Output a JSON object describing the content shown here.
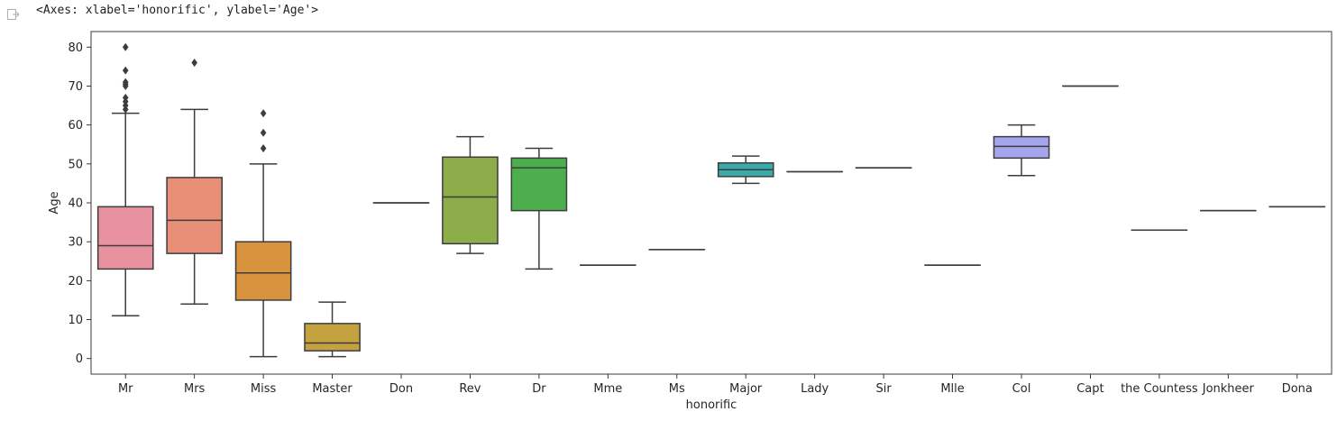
{
  "cell_output": {
    "text": "<Axes: xlabel='honorific', ylabel='Age'>",
    "icon": "output-redirect-icon"
  },
  "chart_data": {
    "type": "box",
    "xlabel": "honorific",
    "ylabel": "Age",
    "ylim": [
      -4,
      84
    ],
    "yticks": [
      0,
      10,
      20,
      30,
      40,
      50,
      60,
      70,
      80
    ],
    "grid": false,
    "categories": [
      "Mr",
      "Mrs",
      "Miss",
      "Master",
      "Don",
      "Rev",
      "Dr",
      "Mme",
      "Ms",
      "Major",
      "Lady",
      "Sir",
      "Mlle",
      "Col",
      "Capt",
      "the Countess",
      "Jonkheer",
      "Dona"
    ],
    "boxes": [
      {
        "category": "Mr",
        "color": "#e8919f",
        "whislo": 11,
        "q1": 23,
        "median": 29,
        "q3": 39,
        "whishi": 63,
        "fliers": [
          64,
          65,
          66,
          67,
          70,
          70.5,
          71,
          74,
          80
        ]
      },
      {
        "category": "Mrs",
        "color": "#e78f77",
        "whislo": 14,
        "q1": 27,
        "median": 35.5,
        "q3": 46.5,
        "whishi": 64,
        "fliers": [
          76
        ]
      },
      {
        "category": "Miss",
        "color": "#d9923e",
        "whislo": 0.5,
        "q1": 15,
        "median": 22,
        "q3": 30,
        "whishi": 50,
        "fliers": [
          54,
          58,
          63
        ]
      },
      {
        "category": "Master",
        "color": "#c4a240",
        "whislo": 0.5,
        "q1": 2,
        "median": 4,
        "q3": 9,
        "whishi": 14.5,
        "fliers": []
      },
      {
        "category": "Don",
        "color": "#b0ad3f",
        "whislo": 40,
        "q1": 40,
        "median": 40,
        "q3": 40,
        "whishi": 40,
        "fliers": []
      },
      {
        "category": "Rev",
        "color": "#8dac4a",
        "whislo": 27,
        "q1": 29.5,
        "median": 41.5,
        "q3": 51.75,
        "whishi": 57,
        "fliers": []
      },
      {
        "category": "Dr",
        "color": "#4cae4c",
        "whislo": 23,
        "q1": 38,
        "median": 49,
        "q3": 51.5,
        "whishi": 54,
        "fliers": []
      },
      {
        "category": "Mme",
        "color": "#3fae85",
        "whislo": 24,
        "q1": 24,
        "median": 24,
        "q3": 24,
        "whishi": 24,
        "fliers": []
      },
      {
        "category": "Ms",
        "color": "#3cae9f",
        "whislo": 28,
        "q1": 28,
        "median": 28,
        "q3": 28,
        "whishi": 28,
        "fliers": []
      },
      {
        "category": "Major",
        "color": "#3aabab",
        "whislo": 45,
        "q1": 46.75,
        "median": 48.5,
        "q3": 50.25,
        "whishi": 52,
        "fliers": []
      },
      {
        "category": "Lady",
        "color": "#3ea9c2",
        "whislo": 48,
        "q1": 48,
        "median": 48,
        "q3": 48,
        "whishi": 48,
        "fliers": []
      },
      {
        "category": "Sir",
        "color": "#43a4d6",
        "whislo": 49,
        "q1": 49,
        "median": 49,
        "q3": 49,
        "whishi": 49,
        "fliers": []
      },
      {
        "category": "Mlle",
        "color": "#6c9fe0",
        "whislo": 24,
        "q1": 24,
        "median": 24,
        "q3": 24,
        "whishi": 24,
        "fliers": []
      },
      {
        "category": "Col",
        "color": "#a6a6ef",
        "whislo": 47,
        "q1": 51.5,
        "median": 54.5,
        "q3": 57,
        "whishi": 60,
        "fliers": []
      },
      {
        "category": "Capt",
        "color": "#c296ec",
        "whislo": 70,
        "q1": 70,
        "median": 70,
        "q3": 70,
        "whishi": 70,
        "fliers": []
      },
      {
        "category": "the Countess",
        "color": "#dc8de4",
        "whislo": 33,
        "q1": 33,
        "median": 33,
        "q3": 33,
        "whishi": 33,
        "fliers": []
      },
      {
        "category": "Jonkheer",
        "color": "#e68ed2",
        "whislo": 38,
        "q1": 38,
        "median": 38,
        "q3": 38,
        "whishi": 38,
        "fliers": []
      },
      {
        "category": "Dona",
        "color": "#ea90b8",
        "whislo": 39,
        "q1": 39,
        "median": 39,
        "q3": 39,
        "whishi": 39,
        "fliers": []
      }
    ]
  }
}
